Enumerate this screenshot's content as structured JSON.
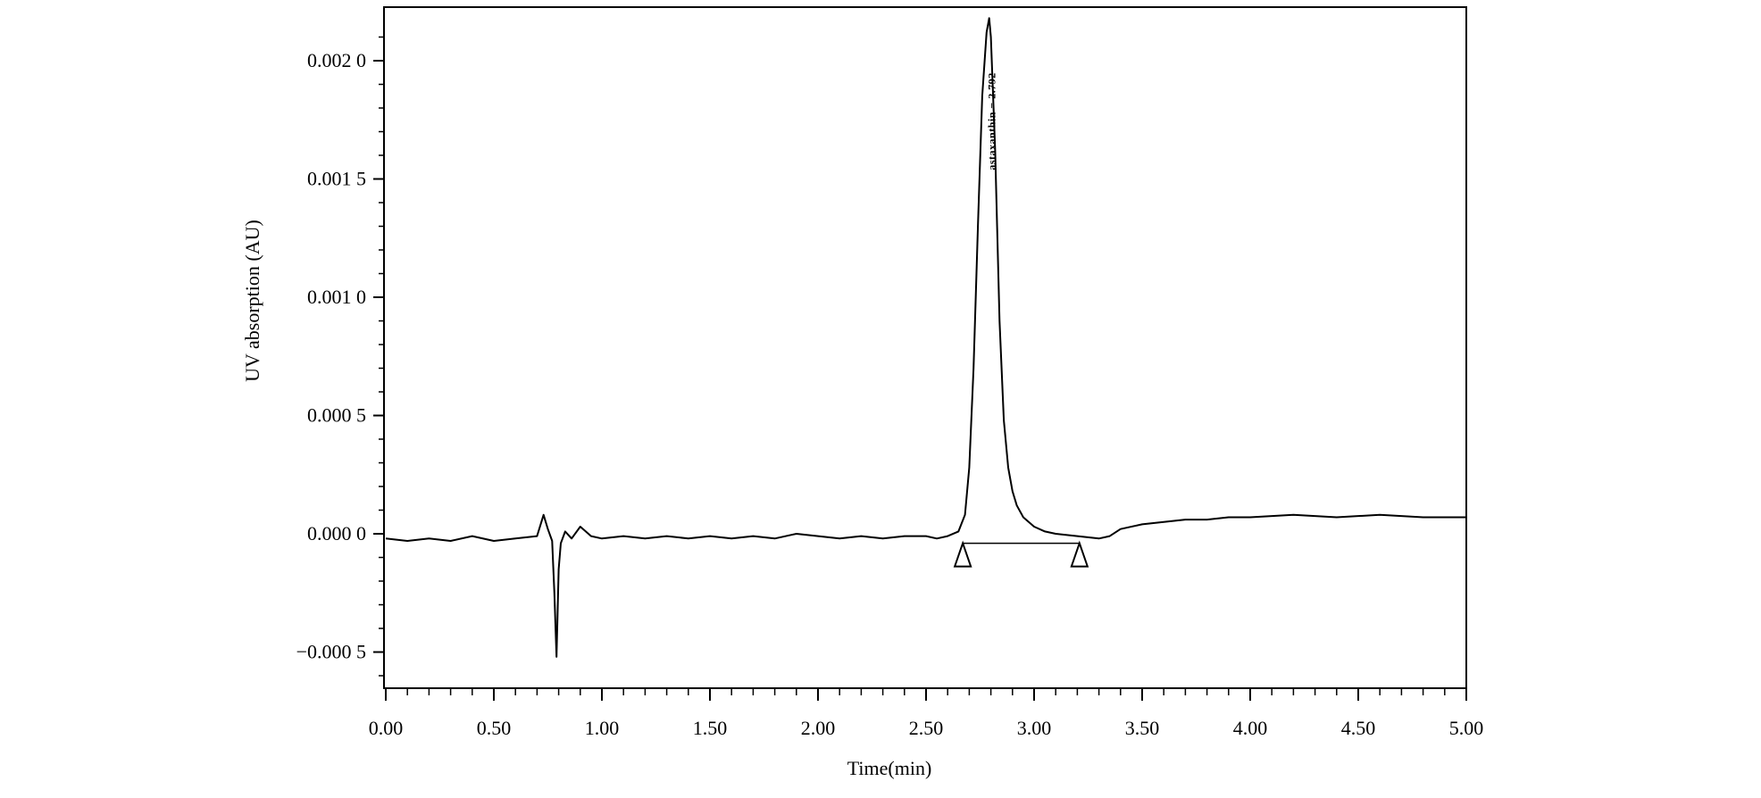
{
  "chart_data": {
    "type": "line",
    "title": "",
    "xlabel": "Time(min)",
    "ylabel": "UV absorption (AU)",
    "xlim": [
      0,
      5
    ],
    "ylim": [
      -0.00065,
      0.0022
    ],
    "x_ticks": [
      0,
      0.5,
      1.0,
      1.5,
      2.0,
      2.5,
      3.0,
      3.5,
      4.0,
      4.5,
      5.0
    ],
    "x_tick_labels": [
      "0.00",
      "0.50",
      "1.00",
      "1.50",
      "2.00",
      "2.50",
      "3.00",
      "3.50",
      "4.00",
      "4.50",
      "5.00"
    ],
    "y_ticks": [
      -0.0005,
      0,
      0.0005,
      0.001,
      0.0015,
      0.002
    ],
    "y_tick_labels": [
      "−0.000 5",
      "0.000 0",
      "0.000 5",
      "0.001 0",
      "0.001 5",
      "0.002 0"
    ],
    "grid": false,
    "peak": {
      "label": "astaxanthin − 2.792",
      "retention_time": 2.792,
      "apex": 0.00218,
      "integration_start": 2.67,
      "integration_end": 3.21
    },
    "series": [
      {
        "x": [
          0,
          0.1,
          0.2,
          0.3,
          0.4,
          0.5,
          0.6,
          0.7,
          0.73,
          0.75,
          0.77,
          0.78,
          0.79,
          0.8,
          0.81,
          0.83,
          0.86,
          0.9,
          0.95,
          1.0,
          1.1,
          1.2,
          1.3,
          1.4,
          1.5,
          1.6,
          1.7,
          1.8,
          1.9,
          2.0,
          2.1,
          2.2,
          2.3,
          2.4,
          2.5,
          2.55,
          2.6,
          2.65,
          2.68,
          2.7,
          2.72,
          2.74,
          2.76,
          2.78,
          2.792,
          2.8,
          2.82,
          2.84,
          2.86,
          2.88,
          2.9,
          2.92,
          2.95,
          3.0,
          3.05,
          3.1,
          3.2,
          3.3,
          3.35,
          3.4,
          3.5,
          3.6,
          3.7,
          3.8,
          3.9,
          4.0,
          4.2,
          4.4,
          4.6,
          4.8,
          5.0
        ],
        "y": [
          -2e-05,
          -3e-05,
          -2e-05,
          -3e-05,
          -1e-05,
          -3e-05,
          -2e-05,
          -1e-05,
          8e-05,
          2e-05,
          -3e-05,
          -0.00025,
          -0.00052,
          -0.00015,
          -4e-05,
          1e-05,
          -2e-05,
          3e-05,
          -1e-05,
          -2e-05,
          -1e-05,
          -2e-05,
          -1e-05,
          -2e-05,
          -1e-05,
          -2e-05,
          -1e-05,
          -2e-05,
          0,
          -1e-05,
          -2e-05,
          -1e-05,
          -2e-05,
          -1e-05,
          -1e-05,
          -2e-05,
          -1e-05,
          1e-05,
          8e-05,
          0.00028,
          0.0007,
          0.0013,
          0.00185,
          0.00212,
          0.00218,
          0.0021,
          0.00162,
          0.0009,
          0.00048,
          0.00028,
          0.00018,
          0.00012,
          7e-05,
          3e-05,
          1e-05,
          0,
          -1e-05,
          -2e-05,
          -1e-05,
          2e-05,
          4e-05,
          5e-05,
          6e-05,
          6e-05,
          7e-05,
          7e-05,
          8e-05,
          7e-05,
          8e-05,
          7e-05,
          7e-05
        ]
      }
    ]
  }
}
